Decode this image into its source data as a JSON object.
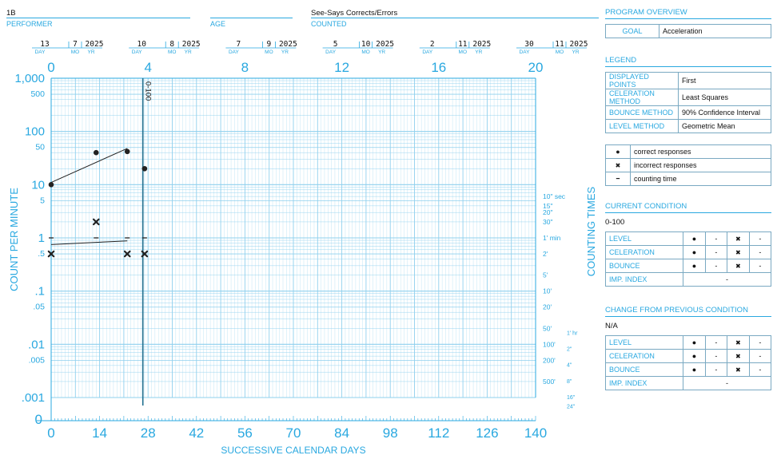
{
  "header": {
    "performer_value": "1B",
    "performer_label": "PERFORMER",
    "age_label": "AGE",
    "counted_value": "See-Says Corrects/Errors",
    "counted_label": "COUNTED"
  },
  "dates": [
    {
      "day": "13",
      "mo": "7",
      "yr": "2025"
    },
    {
      "day": "10",
      "mo": "8",
      "yr": "2025"
    },
    {
      "day": "7",
      "mo": "9",
      "yr": "2025"
    },
    {
      "day": "5",
      "mo": "10",
      "yr": "2025"
    },
    {
      "day": "2",
      "mo": "11",
      "yr": "2025"
    },
    {
      "day": "30",
      "mo": "11",
      "yr": "2025"
    }
  ],
  "date_sublabels": {
    "day": "DAY",
    "mo": "MO",
    "yr": "YR"
  },
  "chart_data": {
    "type": "scatter",
    "scale": "semi-logarithmic",
    "xlabel": "SUCCESSIVE CALENDAR DAYS",
    "ylabel": "COUNT PER MINUTE",
    "right_label": "COUNTING TIMES",
    "xlim": [
      0,
      140
    ],
    "ylim": [
      0.001,
      1000
    ],
    "x_ticks": [
      "0",
      "14",
      "28",
      "42",
      "56",
      "70",
      "84",
      "98",
      "112",
      "126",
      "140"
    ],
    "top_ticks": [
      "0",
      "4",
      "8",
      "12",
      "16",
      "20"
    ],
    "y_ticks": [
      {
        "v": 1000,
        "label": "1,000",
        "major": true
      },
      {
        "v": 500,
        "label": "500",
        "major": false
      },
      {
        "v": 100,
        "label": "100",
        "major": true
      },
      {
        "v": 50,
        "label": "50",
        "major": false
      },
      {
        "v": 10,
        "label": "10",
        "major": true
      },
      {
        "v": 5,
        "label": "5",
        "major": false
      },
      {
        "v": 1,
        "label": "1",
        "major": true
      },
      {
        "v": 0.5,
        "label": ".5",
        "major": false
      },
      {
        "v": 0.1,
        "label": ".1",
        "major": true
      },
      {
        "v": 0.05,
        "label": ".05",
        "major": false
      },
      {
        "v": 0.01,
        "label": ".01",
        "major": true
      },
      {
        "v": 0.005,
        "label": ".005",
        "major": false
      },
      {
        "v": 0.001,
        "label": ".001",
        "major": true
      }
    ],
    "counting_times": [
      {
        "v": 6,
        "label": "10\" sec"
      },
      {
        "v": 4,
        "label": "15\""
      },
      {
        "v": 3,
        "label": "20\""
      },
      {
        "v": 2,
        "label": "30\""
      },
      {
        "v": 1,
        "label": "1' min"
      },
      {
        "v": 0.5,
        "label": "2'"
      },
      {
        "v": 0.2,
        "label": "5'"
      },
      {
        "v": 0.1,
        "label": "10'"
      },
      {
        "v": 0.05,
        "label": "20'"
      },
      {
        "v": 0.02,
        "label": "50'"
      },
      {
        "v": 0.01,
        "label": "100'"
      },
      {
        "v": 0.005,
        "label": "200'"
      },
      {
        "v": 0.002,
        "label": "500'"
      }
    ],
    "counting_hours": [
      {
        "v": 0.0167,
        "label": "1' hr"
      },
      {
        "v": 0.00833,
        "label": "2\""
      },
      {
        "v": 0.00417,
        "label": "4\""
      },
      {
        "v": 0.00208,
        "label": "8\""
      },
      {
        "v": 0.00104,
        "label": "16\""
      },
      {
        "v": 0.000694,
        "label": "24\""
      }
    ],
    "phase_line": {
      "x": 26.5,
      "label": "0-100"
    },
    "series": [
      {
        "name": "correct responses",
        "marker": "dot",
        "points": [
          [
            0,
            10
          ],
          [
            13,
            40
          ],
          [
            22,
            42
          ],
          [
            27,
            20
          ]
        ]
      },
      {
        "name": "incorrect responses",
        "marker": "cross",
        "points": [
          [
            0,
            0.5
          ],
          [
            13,
            2
          ],
          [
            22,
            0.5
          ],
          [
            27,
            0.5
          ]
        ]
      },
      {
        "name": "counting time",
        "marker": "dash",
        "points": [
          [
            0,
            1
          ],
          [
            13,
            1
          ],
          [
            22,
            1
          ],
          [
            27,
            1
          ]
        ]
      }
    ],
    "celeration_lines": [
      {
        "series": "correct responses",
        "from": [
          0,
          11
        ],
        "to": [
          22,
          48
        ]
      },
      {
        "series": "incorrect responses",
        "from": [
          0,
          0.75
        ],
        "to": [
          22,
          0.88
        ]
      }
    ]
  },
  "program_overview": {
    "title": "PROGRAM OVERVIEW",
    "goal_label": "GOAL",
    "goal_value": "Acceleration"
  },
  "legend": {
    "title": "LEGEND",
    "rows": [
      {
        "k": "DISPLAYED POINTS",
        "v": "First"
      },
      {
        "k": "CELERATION METHOD",
        "v": "Least Squares"
      },
      {
        "k": "BOUNCE METHOD",
        "v": "90% Confidence Interval"
      },
      {
        "k": "LEVEL METHOD",
        "v": "Geometric Mean"
      }
    ],
    "symbols": [
      {
        "sym": "●",
        "label": "correct responses"
      },
      {
        "sym": "✖",
        "label": "incorrect responses"
      },
      {
        "sym": "━",
        "label": "counting time"
      }
    ]
  },
  "current_condition": {
    "title": "CURRENT CONDITION",
    "name": "0-100",
    "rows": [
      {
        "k": "LEVEL",
        "a": "●",
        "b": "-",
        "c": "✖",
        "d": "-"
      },
      {
        "k": "CELERATION",
        "a": "●",
        "b": "-",
        "c": "✖",
        "d": "-"
      },
      {
        "k": "BOUNCE",
        "a": "●",
        "b": "-",
        "c": "✖",
        "d": "-"
      }
    ],
    "imp_label": "IMP. INDEX",
    "imp_value": "-"
  },
  "change_condition": {
    "title": "CHANGE FROM PREVIOUS CONDITION",
    "name": "N/A",
    "rows": [
      {
        "k": "LEVEL",
        "a": "●",
        "b": "-",
        "c": "✖",
        "d": "-"
      },
      {
        "k": "CELERATION",
        "a": "●",
        "b": "-",
        "c": "✖",
        "d": "-"
      },
      {
        "k": "BOUNCE",
        "a": "●",
        "b": "-",
        "c": "✖",
        "d": "-"
      }
    ],
    "imp_label": "IMP. INDEX",
    "imp_value": "-"
  },
  "colors": {
    "accent": "#29a8e0",
    "grid": "#8fd0ee",
    "phase": "#1f6f8f",
    "ink": "#222222"
  }
}
